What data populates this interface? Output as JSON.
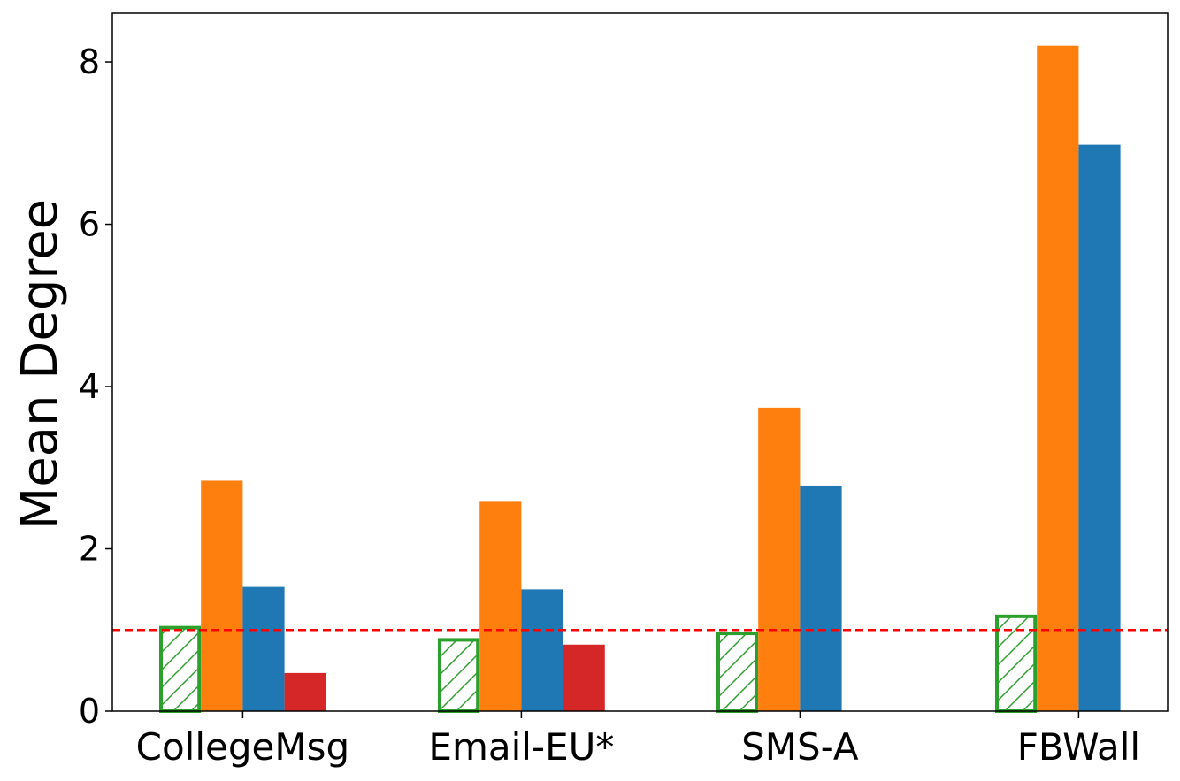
{
  "chart_data": {
    "type": "bar",
    "ylabel": "Mean Degree",
    "xlabel": "",
    "ylim": [
      0,
      8.6
    ],
    "yticks": [
      0,
      2,
      4,
      6,
      8
    ],
    "categories": [
      "CollegeMsg",
      "Email-EU*",
      "SMS-A",
      "FBWall"
    ],
    "series": [
      {
        "color": "#2ca02c",
        "style": "hatched-outline",
        "values": [
          1.05,
          0.9,
          0.98,
          1.19
        ]
      },
      {
        "color": "#ff7f0e",
        "style": "solid",
        "values": [
          2.84,
          2.59,
          3.74,
          8.2
        ]
      },
      {
        "color": "#1f77b4",
        "style": "solid",
        "values": [
          1.53,
          1.5,
          2.78,
          6.98
        ]
      },
      {
        "color": "#d62728",
        "style": "solid",
        "values": [
          0.47,
          0.82,
          null,
          null
        ]
      }
    ],
    "reference_line": {
      "y": 1.0,
      "color": "#ff0000",
      "style": "dashed"
    },
    "grid": false,
    "legend": "none"
  }
}
